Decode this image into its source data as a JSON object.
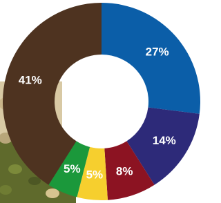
{
  "chart_data": {
    "type": "donut",
    "values": [
      27,
      14,
      8,
      5,
      5,
      41
    ],
    "value_labels": [
      "27%",
      "14%",
      "8%",
      "5%",
      "5%",
      "41%"
    ],
    "colors": [
      "#0b5ea8",
      "#2d2a79",
      "#8c1322",
      "#f6cf2e",
      "#1b983b",
      "#4e3320"
    ]
  }
}
